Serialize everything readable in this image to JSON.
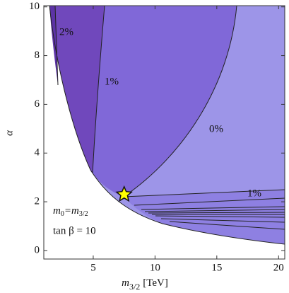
{
  "chart_data": {
    "type": "contour",
    "x_label": {
      "symbol": "m",
      "subscript": "3/2",
      "unit": "[TeV]"
    },
    "y_label": "α",
    "xlim": [
      1,
      20.5
    ],
    "ylim": [
      -0.35,
      10.05
    ],
    "xticks": [
      5,
      10,
      15,
      20
    ],
    "yticks": [
      0,
      2,
      4,
      6,
      8,
      10
    ],
    "contour_labels": [
      "2%",
      "1%",
      "0%",
      "1%"
    ],
    "notes": [
      {
        "symbol": "m",
        "sub": "0",
        "eq": "=m",
        "sub2": "3/2"
      },
      "tan β = 10"
    ],
    "marker": {
      "x": 7.5,
      "y": 2.3,
      "color": "#ffff00"
    }
  }
}
